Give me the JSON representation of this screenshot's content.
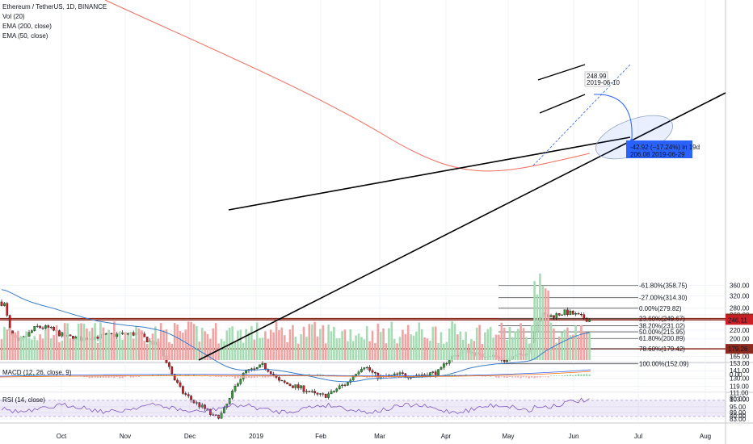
{
  "legend": {
    "symbol": "Ethereum / TetherUS, 1D, BINANCE",
    "vol": "Vol (20)",
    "ema200": "EMA (200, close)",
    "ema50": "EMA (50, close)"
  },
  "macd_label": "MACD (12, 26, close, 9)",
  "rsi_label": "RSI (14, close)",
  "colors": {
    "up": "#26a69a",
    "up_bright": "#2e9e2e",
    "down": "#cc1f26",
    "ema50": "#3b7dc8",
    "ema200": "#f26c5b",
    "hline": "#8b2b1f",
    "trend": "#000000",
    "proj": "#2962ff"
  },
  "chart_data": {
    "type": "candlestick",
    "price_axis_ticks": [
      "360.00",
      "320.00",
      "280.00",
      "260.00",
      "240.00",
      "220.00",
      "200.00",
      "180.00",
      "165.00",
      "153.00",
      "141.00",
      "130.00",
      "119.00",
      "111.00",
      "103.00",
      "95.00",
      "89.00",
      "83.00"
    ],
    "time_axis_ticks": [
      "Oct",
      "Nov",
      "Dec",
      "2019",
      "Feb",
      "Mar",
      "Apr",
      "May",
      "Jun",
      "Jul",
      "Aug"
    ],
    "price_badges": [
      {
        "label": "249.94",
        "color": "#8b2b1f"
      },
      {
        "label": "246.11",
        "color": "#cc1f26"
      },
      {
        "label": "179.26",
        "color": "#8b2b1f"
      }
    ],
    "fib_levels": [
      {
        "label": "-61.80%(358.75)"
      },
      {
        "label": "-27.00%(314.30)"
      },
      {
        "label": "0.00%(279.82)"
      },
      {
        "label": "23.60%(249.67)"
      },
      {
        "label": "38.20%(231.02)"
      },
      {
        "label": "50.00%(215.95)"
      },
      {
        "label": "61.80%(200.89)"
      },
      {
        "label": "78.60%(179.42)"
      },
      {
        "label": "100.00%(152.09)"
      }
    ],
    "callout_top": {
      "value": "248.99",
      "date": "2019-06-10"
    },
    "projection": {
      "text": "-42.92 (−17.24%) in 19d",
      "sub": "206.08  2019-06-29"
    },
    "macd_ticks": [
      "0.00"
    ],
    "rsi_ticks": [
      "80.00",
      "40.00"
    ]
  }
}
